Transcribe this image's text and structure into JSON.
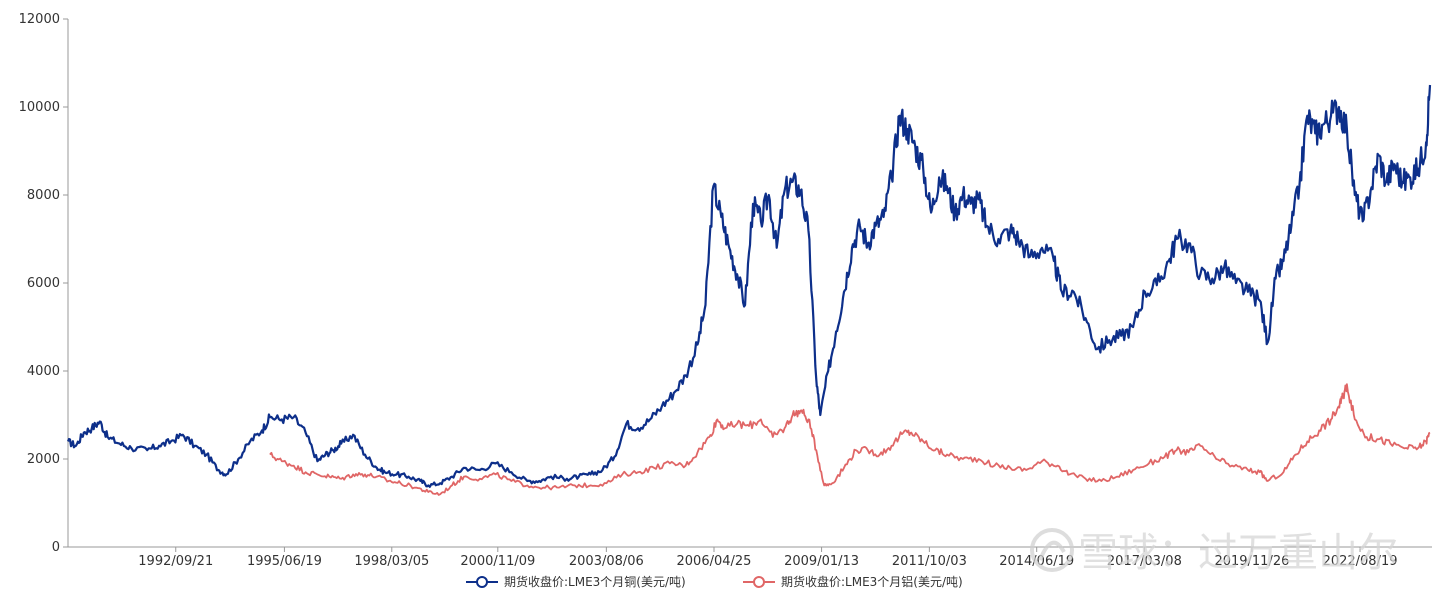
{
  "chart_data": {
    "type": "line",
    "title": "",
    "xlabel": "",
    "ylabel": "",
    "ylim": [
      0,
      12000
    ],
    "y_ticks": [
      "0",
      "2000",
      "4000",
      "6000",
      "8000",
      "10000",
      "12000"
    ],
    "x_tick_labels": [
      "1992/09/21",
      "1995/06/19",
      "1998/03/05",
      "2000/11/09",
      "2003/08/06",
      "2006/04/25",
      "2009/01/13",
      "2011/10/03",
      "2014/06/19",
      "2017/03/08",
      "2019/11/26",
      "2022/08/19"
    ],
    "xlim": [
      1990.0,
      2024.45
    ],
    "grid": false,
    "legend_position": "bottom-center",
    "series": [
      {
        "name": "期货收盘价:LME3个月铜(美元/吨)",
        "color": "#0d2f8a",
        "x": [
          1990.0,
          1990.2,
          1990.4,
          1990.6,
          1990.8,
          1991.0,
          1991.3,
          1991.6,
          1992.0,
          1992.3,
          1992.6,
          1992.9,
          1993.2,
          1993.5,
          1993.8,
          1994.0,
          1994.3,
          1994.6,
          1994.9,
          1995.1,
          1995.4,
          1995.7,
          1996.0,
          1996.3,
          1996.5,
          1996.7,
          1996.9,
          1997.2,
          1997.5,
          1997.8,
          1998.0,
          1998.3,
          1998.6,
          1998.9,
          1999.1,
          1999.4,
          1999.7,
          2000.0,
          2000.4,
          2000.8,
          2001.2,
          2001.6,
          2001.9,
          2002.2,
          2002.6,
          2002.9,
          2003.2,
          2003.5,
          2003.8,
          2004.1,
          2004.4,
          2004.7,
          2005.0,
          2005.3,
          2005.6,
          2005.9,
          2006.1,
          2006.3,
          2006.5,
          2006.7,
          2006.9,
          2007.1,
          2007.3,
          2007.5,
          2007.7,
          2007.9,
          2008.1,
          2008.3,
          2008.5,
          2008.7,
          2008.9,
          2009.0,
          2009.2,
          2009.4,
          2009.6,
          2009.8,
          2010.0,
          2010.2,
          2010.4,
          2010.6,
          2010.8,
          2011.0,
          2011.2,
          2011.4,
          2011.6,
          2011.8,
          2012.0,
          2012.2,
          2012.4,
          2012.6,
          2012.8,
          2013.0,
          2013.2,
          2013.5,
          2013.8,
          2014.0,
          2014.3,
          2014.6,
          2014.9,
          2015.1,
          2015.4,
          2015.7,
          2016.0,
          2016.3,
          2016.6,
          2016.9,
          2017.2,
          2017.5,
          2017.8,
          2018.0,
          2018.3,
          2018.6,
          2018.9,
          2019.2,
          2019.5,
          2019.8,
          2020.1,
          2020.3,
          2020.5,
          2020.7,
          2020.9,
          2021.1,
          2021.3,
          2021.5,
          2021.7,
          2021.9,
          2022.1,
          2022.3,
          2022.5,
          2022.7,
          2022.9,
          2023.1,
          2023.3,
          2023.5,
          2023.7,
          2023.9,
          2024.1,
          2024.3,
          2024.4
        ],
        "y": [
          2400,
          2300,
          2600,
          2700,
          2850,
          2500,
          2350,
          2250,
          2200,
          2300,
          2400,
          2550,
          2300,
          2100,
          1750,
          1650,
          2000,
          2400,
          2650,
          2950,
          2900,
          2950,
          2600,
          1950,
          2100,
          2200,
          2350,
          2550,
          2100,
          1800,
          1700,
          1650,
          1600,
          1500,
          1400,
          1450,
          1600,
          1800,
          1750,
          1900,
          1700,
          1500,
          1500,
          1600,
          1550,
          1600,
          1650,
          1750,
          2050,
          2800,
          2700,
          2900,
          3200,
          3500,
          3900,
          4600,
          5500,
          8200,
          7500,
          6800,
          6200,
          5500,
          7800,
          7400,
          8000,
          6800,
          8100,
          8300,
          8100,
          7200,
          3800,
          3000,
          4000,
          4900,
          5800,
          6800,
          7300,
          6900,
          7300,
          7500,
          8400,
          9800,
          9500,
          9100,
          8600,
          7600,
          8400,
          8200,
          7600,
          8000,
          7800,
          7900,
          7300,
          7000,
          7200,
          7000,
          6600,
          6800,
          6500,
          5800,
          5800,
          5200,
          4500,
          4700,
          4800,
          5000,
          5800,
          5950,
          6500,
          7000,
          6900,
          6200,
          6100,
          6350,
          6000,
          5800,
          5600,
          4650,
          6100,
          6500,
          7300,
          8200,
          9800,
          9400,
          9600,
          9800,
          10000,
          9500,
          8000,
          7400,
          8100,
          8900,
          8300,
          8700,
          8300,
          8400,
          8600,
          9200,
          10500
        ]
      },
      {
        "name": "期货收盘价:LME3个月铝(美元/吨)",
        "color": "#e06666",
        "x": [
          1995.1,
          1995.4,
          1995.7,
          1996.0,
          1996.3,
          1996.6,
          1996.9,
          1997.2,
          1997.5,
          1997.8,
          1998.1,
          1998.4,
          1998.8,
          1999.1,
          1999.4,
          1999.7,
          2000.0,
          2000.4,
          2000.8,
          2001.2,
          2001.6,
          2002.0,
          2002.4,
          2002.8,
          2003.2,
          2003.6,
          2004.0,
          2004.4,
          2004.8,
          2005.2,
          2005.6,
          2005.9,
          2006.2,
          2006.4,
          2006.6,
          2006.9,
          2007.2,
          2007.5,
          2007.8,
          2008.1,
          2008.3,
          2008.5,
          2008.7,
          2008.9,
          2009.1,
          2009.3,
          2009.6,
          2009.9,
          2010.2,
          2010.5,
          2010.8,
          2011.1,
          2011.3,
          2011.6,
          2011.9,
          2012.2,
          2012.6,
          2013.0,
          2013.4,
          2013.8,
          2014.2,
          2014.6,
          2015.0,
          2015.3,
          2015.7,
          2016.1,
          2016.5,
          2016.9,
          2017.3,
          2017.7,
          2018.0,
          2018.3,
          2018.6,
          2019.0,
          2019.4,
          2019.8,
          2020.1,
          2020.3,
          2020.7,
          2021.0,
          2021.3,
          2021.6,
          2021.9,
          2022.1,
          2022.2,
          2022.3,
          2022.5,
          2022.8,
          2023.1,
          2023.4,
          2023.8,
          2024.1,
          2024.3,
          2024.4
        ],
        "y": [
          2100,
          1950,
          1850,
          1700,
          1650,
          1600,
          1550,
          1650,
          1650,
          1600,
          1500,
          1450,
          1350,
          1250,
          1200,
          1400,
          1600,
          1550,
          1650,
          1500,
          1400,
          1350,
          1350,
          1400,
          1400,
          1450,
          1650,
          1700,
          1800,
          1900,
          1850,
          2150,
          2500,
          2900,
          2700,
          2800,
          2750,
          2900,
          2500,
          2700,
          3000,
          3100,
          2900,
          2200,
          1400,
          1450,
          1800,
          2200,
          2200,
          2100,
          2300,
          2600,
          2600,
          2400,
          2200,
          2100,
          2000,
          2000,
          1850,
          1800,
          1750,
          1950,
          1850,
          1650,
          1550,
          1500,
          1600,
          1750,
          1900,
          2050,
          2200,
          2150,
          2300,
          2000,
          1850,
          1750,
          1700,
          1500,
          1700,
          2100,
          2400,
          2650,
          2900,
          3200,
          3400,
          3700,
          2900,
          2500,
          2450,
          2350,
          2250,
          2250,
          2400,
          2600
        ]
      }
    ]
  },
  "watermark": {
    "icon": "snowball-logo-icon",
    "text": "雪球：过万重山尔"
  }
}
